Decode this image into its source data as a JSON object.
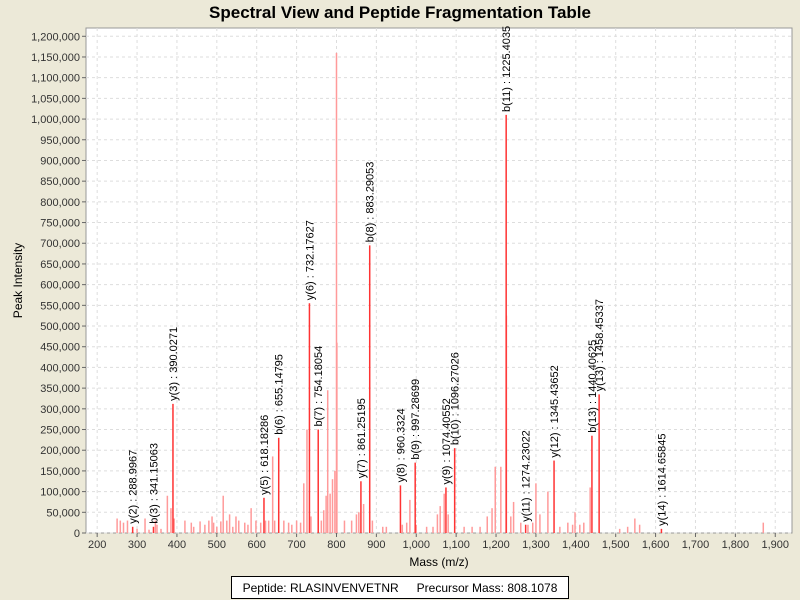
{
  "chart_data": {
    "type": "bar",
    "title": "Spectral View and Peptide Fragmentation Table",
    "xlabel": "Mass (m/z)",
    "ylabel": "Peak Intensity",
    "xlim": [
      172,
      1942
    ],
    "ylim": [
      0,
      1220000
    ],
    "grid": true,
    "xticks": [
      200,
      300,
      400,
      500,
      600,
      700,
      800,
      900,
      1000,
      1100,
      1200,
      1300,
      1400,
      1500,
      1600,
      1700,
      1800,
      1900
    ],
    "xtick_labels": [
      "200",
      "300",
      "400",
      "500",
      "600",
      "700",
      "800",
      "900",
      "1,000",
      "1,100",
      "1,200",
      "1,300",
      "1,400",
      "1,500",
      "1,600",
      "1,700",
      "1,800",
      "1,900"
    ],
    "yticks": [
      0,
      50000,
      100000,
      150000,
      200000,
      250000,
      300000,
      350000,
      400000,
      450000,
      500000,
      550000,
      600000,
      650000,
      700000,
      750000,
      800000,
      850000,
      900000,
      950000,
      1000000,
      1050000,
      1100000,
      1150000,
      1200000
    ],
    "ytick_labels": [
      "0",
      "50,000",
      "100,000",
      "150,000",
      "200,000",
      "250,000",
      "300,000",
      "350,000",
      "400,000",
      "450,000",
      "500,000",
      "550,000",
      "600,000",
      "650,000",
      "700,000",
      "750,000",
      "800,000",
      "850,000",
      "900,000",
      "950,000",
      "1,000,000",
      "1,050,000",
      "1,100,000",
      "1,150,000",
      "1,200,000"
    ],
    "annotated_peaks": [
      {
        "mz": 288.9967,
        "intensity": 15000,
        "label": "y(2) : 288.9967"
      },
      {
        "mz": 341.15063,
        "intensity": 15000,
        "label": "b(3) : 341.15063"
      },
      {
        "mz": 390.0271,
        "intensity": 312000,
        "label": "y(3) : 390.0271"
      },
      {
        "mz": 618.18286,
        "intensity": 85000,
        "label": "y(5) : 618.18286"
      },
      {
        "mz": 655.14795,
        "intensity": 230000,
        "label": "b(6) : 655.14795"
      },
      {
        "mz": 732.17627,
        "intensity": 555000,
        "label": "y(6) : 732.17627"
      },
      {
        "mz": 754.18054,
        "intensity": 250000,
        "label": "b(7) : 754.18054"
      },
      {
        "mz": 861.25195,
        "intensity": 125000,
        "label": "y(7) : 861.25195"
      },
      {
        "mz": 883.29053,
        "intensity": 695000,
        "label": "b(8) : 883.29053"
      },
      {
        "mz": 960.3324,
        "intensity": 115000,
        "label": "y(8) : 960.3324"
      },
      {
        "mz": 997.28699,
        "intensity": 170000,
        "label": "b(9) : 997.28699"
      },
      {
        "mz": 1074.40552,
        "intensity": 110000,
        "label": "y(9) : 1074.40552"
      },
      {
        "mz": 1096.27026,
        "intensity": 205000,
        "label": "b(10) : 1096.27026"
      },
      {
        "mz": 1225.4035,
        "intensity": 1010000,
        "label": "b(11) : 1225.4035"
      },
      {
        "mz": 1274.23022,
        "intensity": 20000,
        "label": "y(11) : 1274.23022"
      },
      {
        "mz": 1345.43652,
        "intensity": 175000,
        "label": "y(12) : 1345.43652"
      },
      {
        "mz": 1440.40625,
        "intensity": 235000,
        "label": "b(13) : 1440.40625"
      },
      {
        "mz": 1458.45337,
        "intensity": 335000,
        "label": "y(13) : 1458.45337"
      },
      {
        "mz": 1614.65845,
        "intensity": 10000,
        "label": "y(14) : 1614.65845"
      }
    ],
    "other_peaks": [
      [
        250,
        35000
      ],
      [
        258,
        30000
      ],
      [
        266,
        25000
      ],
      [
        276,
        30000
      ],
      [
        300,
        10000
      ],
      [
        320,
        35000
      ],
      [
        330,
        8000
      ],
      [
        346,
        30000
      ],
      [
        350,
        20000
      ],
      [
        360,
        10000
      ],
      [
        376,
        90000
      ],
      [
        385,
        60000
      ],
      [
        393,
        35000
      ],
      [
        420,
        30000
      ],
      [
        436,
        25000
      ],
      [
        442,
        15000
      ],
      [
        458,
        28000
      ],
      [
        470,
        20000
      ],
      [
        480,
        30000
      ],
      [
        488,
        40000
      ],
      [
        492,
        25000
      ],
      [
        500,
        15000
      ],
      [
        510,
        28000
      ],
      [
        516,
        90000
      ],
      [
        525,
        30000
      ],
      [
        532,
        45000
      ],
      [
        540,
        15000
      ],
      [
        548,
        40000
      ],
      [
        555,
        30000
      ],
      [
        570,
        25000
      ],
      [
        578,
        20000
      ],
      [
        586,
        60000
      ],
      [
        598,
        30000
      ],
      [
        610,
        25000
      ],
      [
        622,
        30000
      ],
      [
        630,
        30000
      ],
      [
        640,
        185000
      ],
      [
        645,
        30000
      ],
      [
        668,
        30000
      ],
      [
        680,
        25000
      ],
      [
        688,
        20000
      ],
      [
        700,
        30000
      ],
      [
        710,
        25000
      ],
      [
        718,
        120000
      ],
      [
        726,
        250000
      ],
      [
        736,
        40000
      ],
      [
        762,
        30000
      ],
      [
        768,
        55000
      ],
      [
        774,
        90000
      ],
      [
        778,
        345000
      ],
      [
        784,
        95000
      ],
      [
        790,
        130000
      ],
      [
        796,
        150000
      ],
      [
        800,
        1160000
      ],
      [
        801,
        460000
      ],
      [
        820,
        30000
      ],
      [
        838,
        30000
      ],
      [
        850,
        45000
      ],
      [
        856,
        50000
      ],
      [
        868,
        70000
      ],
      [
        890,
        30000
      ],
      [
        916,
        15000
      ],
      [
        925,
        15000
      ],
      [
        965,
        20000
      ],
      [
        976,
        25000
      ],
      [
        984,
        80000
      ],
      [
        1000,
        20000
      ],
      [
        1026,
        15000
      ],
      [
        1042,
        15000
      ],
      [
        1053,
        45000
      ],
      [
        1060,
        65000
      ],
      [
        1070,
        95000
      ],
      [
        1080,
        45000
      ],
      [
        1120,
        15000
      ],
      [
        1140,
        15000
      ],
      [
        1160,
        15000
      ],
      [
        1178,
        40000
      ],
      [
        1190,
        60000
      ],
      [
        1198,
        160000
      ],
      [
        1212,
        160000
      ],
      [
        1226,
        525000
      ],
      [
        1237,
        40000
      ],
      [
        1244,
        75000
      ],
      [
        1262,
        25000
      ],
      [
        1280,
        20000
      ],
      [
        1292,
        25000
      ],
      [
        1300,
        120000
      ],
      [
        1310,
        45000
      ],
      [
        1330,
        100000
      ],
      [
        1360,
        15000
      ],
      [
        1380,
        25000
      ],
      [
        1392,
        20000
      ],
      [
        1398,
        50000
      ],
      [
        1410,
        20000
      ],
      [
        1420,
        25000
      ],
      [
        1436,
        110000
      ],
      [
        1510,
        10000
      ],
      [
        1530,
        15000
      ],
      [
        1548,
        35000
      ],
      [
        1560,
        20000
      ],
      [
        1870,
        25000
      ]
    ],
    "colors": {
      "annotated": "#ff3333",
      "other": "#ff9a9a"
    }
  },
  "legend": {
    "peptide": "Peptide: RLASINVENVETNR",
    "precursor": "Precursor Mass: 808.1078"
  }
}
